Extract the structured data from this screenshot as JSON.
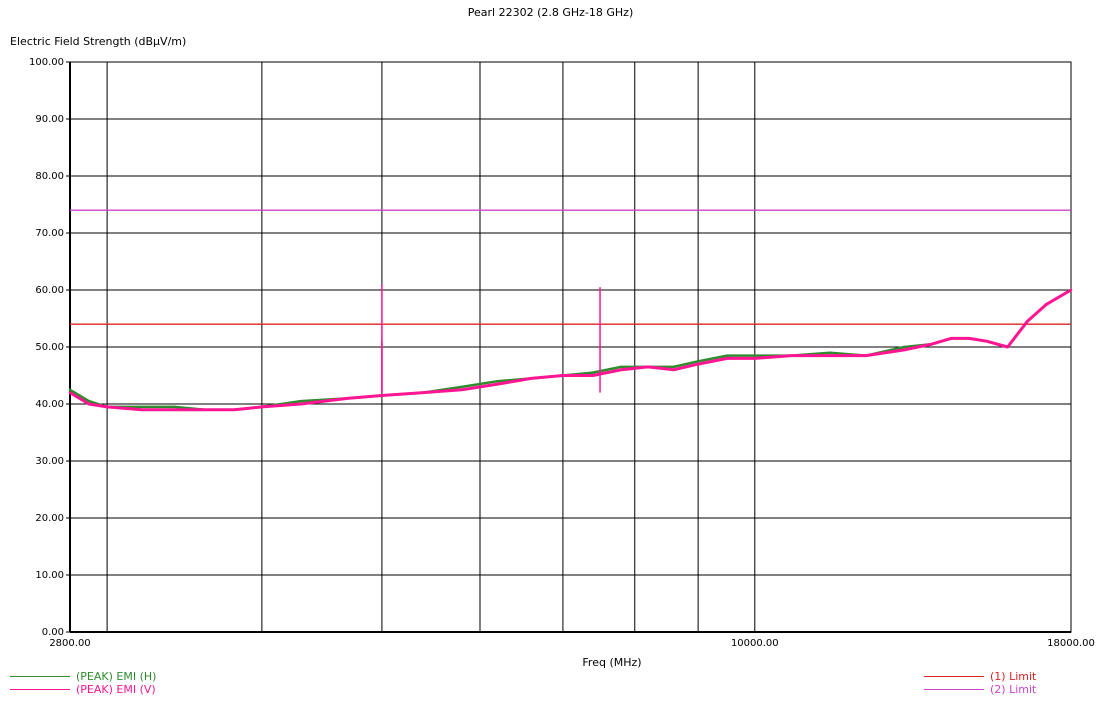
{
  "chart_data": {
    "type": "line",
    "title": "Pearl 22302 (2.8 GHz-18 GHz)",
    "ylabel": "Electric Field Strength (dBµV/m)",
    "xlabel": "Freq (MHz)",
    "x_scale": "log",
    "xlim": [
      2800,
      18000
    ],
    "ylim": [
      0,
      100
    ],
    "x_tick_labels": [
      "2800.00",
      "10000.00",
      "18000.00"
    ],
    "x_ticks": [
      2800,
      10000,
      18000
    ],
    "x_minor_gridlines": [
      3000,
      4000,
      5000,
      6000,
      7000,
      8000,
      9000
    ],
    "y_tick_labels": [
      "0.00",
      "10.00",
      "20.00",
      "30.00",
      "40.00",
      "50.00",
      "60.00",
      "70.00",
      "80.00",
      "90.00",
      "100.00"
    ],
    "grid": true,
    "series": [
      {
        "name": "(PEAK) EMI (H)",
        "color": "#2e8b2e",
        "x": [
          2800,
          2900,
          3000,
          3200,
          3400,
          3600,
          3800,
          4000,
          4300,
          4700,
          5000,
          5400,
          5800,
          6200,
          6600,
          7000,
          7400,
          7800,
          8200,
          8600,
          9000,
          9500,
          10000,
          10700,
          11500,
          12300,
          13200,
          13900,
          14400,
          14900,
          15400,
          16000,
          16600,
          17200,
          18000
        ],
        "y": [
          42.5,
          40.5,
          39.5,
          39.5,
          39.5,
          39,
          39,
          39.5,
          40.5,
          41,
          41.5,
          42,
          43,
          44,
          44.5,
          45,
          45.5,
          46.5,
          46.5,
          46.5,
          47.5,
          48.5,
          48.5,
          48.5,
          49,
          48.5,
          50,
          50.5,
          51.5,
          51.5,
          51,
          50,
          54.5,
          57.5,
          60
        ]
      },
      {
        "name": "(PEAK) EMI (V)",
        "color": "#ff1493",
        "x": [
          2800,
          2900,
          3000,
          3200,
          3400,
          3600,
          3800,
          4000,
          4300,
          4700,
          5000,
          5400,
          5800,
          6200,
          6600,
          7000,
          7400,
          7800,
          8200,
          8600,
          9000,
          9500,
          10000,
          10700,
          11500,
          12300,
          13200,
          13900,
          14400,
          14900,
          15400,
          16000,
          16600,
          17200,
          18000
        ],
        "y": [
          42,
          40,
          39.5,
          39,
          39,
          39,
          39,
          39.5,
          40,
          41,
          41.5,
          42,
          42.5,
          43.5,
          44.5,
          45,
          45,
          46,
          46.5,
          46,
          47,
          48,
          48,
          48.5,
          48.5,
          48.5,
          49.5,
          50.5,
          51.5,
          51.5,
          51,
          50,
          54.5,
          57.5,
          60
        ]
      }
    ],
    "spikes": [
      {
        "x": 5000,
        "y": 61,
        "color": "#ff1493"
      },
      {
        "x": 5000,
        "y": 51,
        "color": "#ff1493"
      },
      {
        "x": 7500,
        "y": 60.5,
        "color": "#ff1493"
      }
    ],
    "limits": [
      {
        "name": "(1) Limit",
        "value": 54,
        "color": "#dd2222"
      },
      {
        "name": "(2) Limit",
        "value": 74,
        "color": "#cc44cc"
      }
    ]
  }
}
